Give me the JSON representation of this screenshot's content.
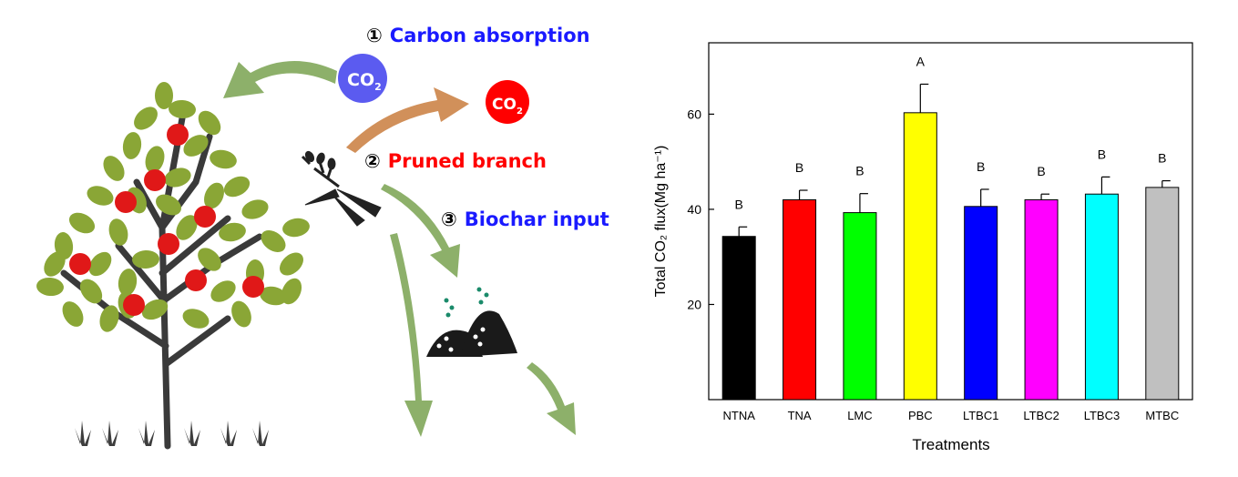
{
  "illustration": {
    "steps": [
      {
        "num": "①",
        "label": "Carbon absorption",
        "color": "#1a1aff"
      },
      {
        "num": "②",
        "label": "Pruned branch",
        "color": "#ff0000"
      },
      {
        "num": "③",
        "label": "Biochar input",
        "color": "#1a1aff"
      }
    ],
    "co2_bubbles": [
      {
        "text": "CO",
        "sub": "2",
        "color": "#5b5bf0"
      },
      {
        "text": "CO",
        "sub": "2",
        "color": "#ff0000"
      }
    ],
    "icons": [
      "apple-tree-icon",
      "pruning-shears-icon",
      "biochar-pile-icon",
      "grass-icon"
    ]
  },
  "chart_data": {
    "type": "bar",
    "categories": [
      "NTNA",
      "TNA",
      "LMC",
      "PBC",
      "LTBC1",
      "LTBC2",
      "LTBC3",
      "MTBC"
    ],
    "values": [
      34.3,
      42.0,
      39.3,
      60.3,
      40.6,
      42.0,
      43.2,
      44.6
    ],
    "errors": [
      2.0,
      2.0,
      4.0,
      6.0,
      3.6,
      1.2,
      3.6,
      1.4
    ],
    "letters": [
      "B",
      "B",
      "B",
      "A",
      "B",
      "B",
      "B",
      "B"
    ],
    "colors": [
      "#000000",
      "#ff0000",
      "#00ff00",
      "#ffff00",
      "#0000ff",
      "#ff00ff",
      "#00ffff",
      "#c0c0c0"
    ],
    "xlabel": "Treatments",
    "ylabel": "Total CO₂ flux(Mg ha⁻¹)",
    "ylim": [
      0,
      75
    ],
    "yticks": [
      20,
      40,
      60
    ]
  }
}
